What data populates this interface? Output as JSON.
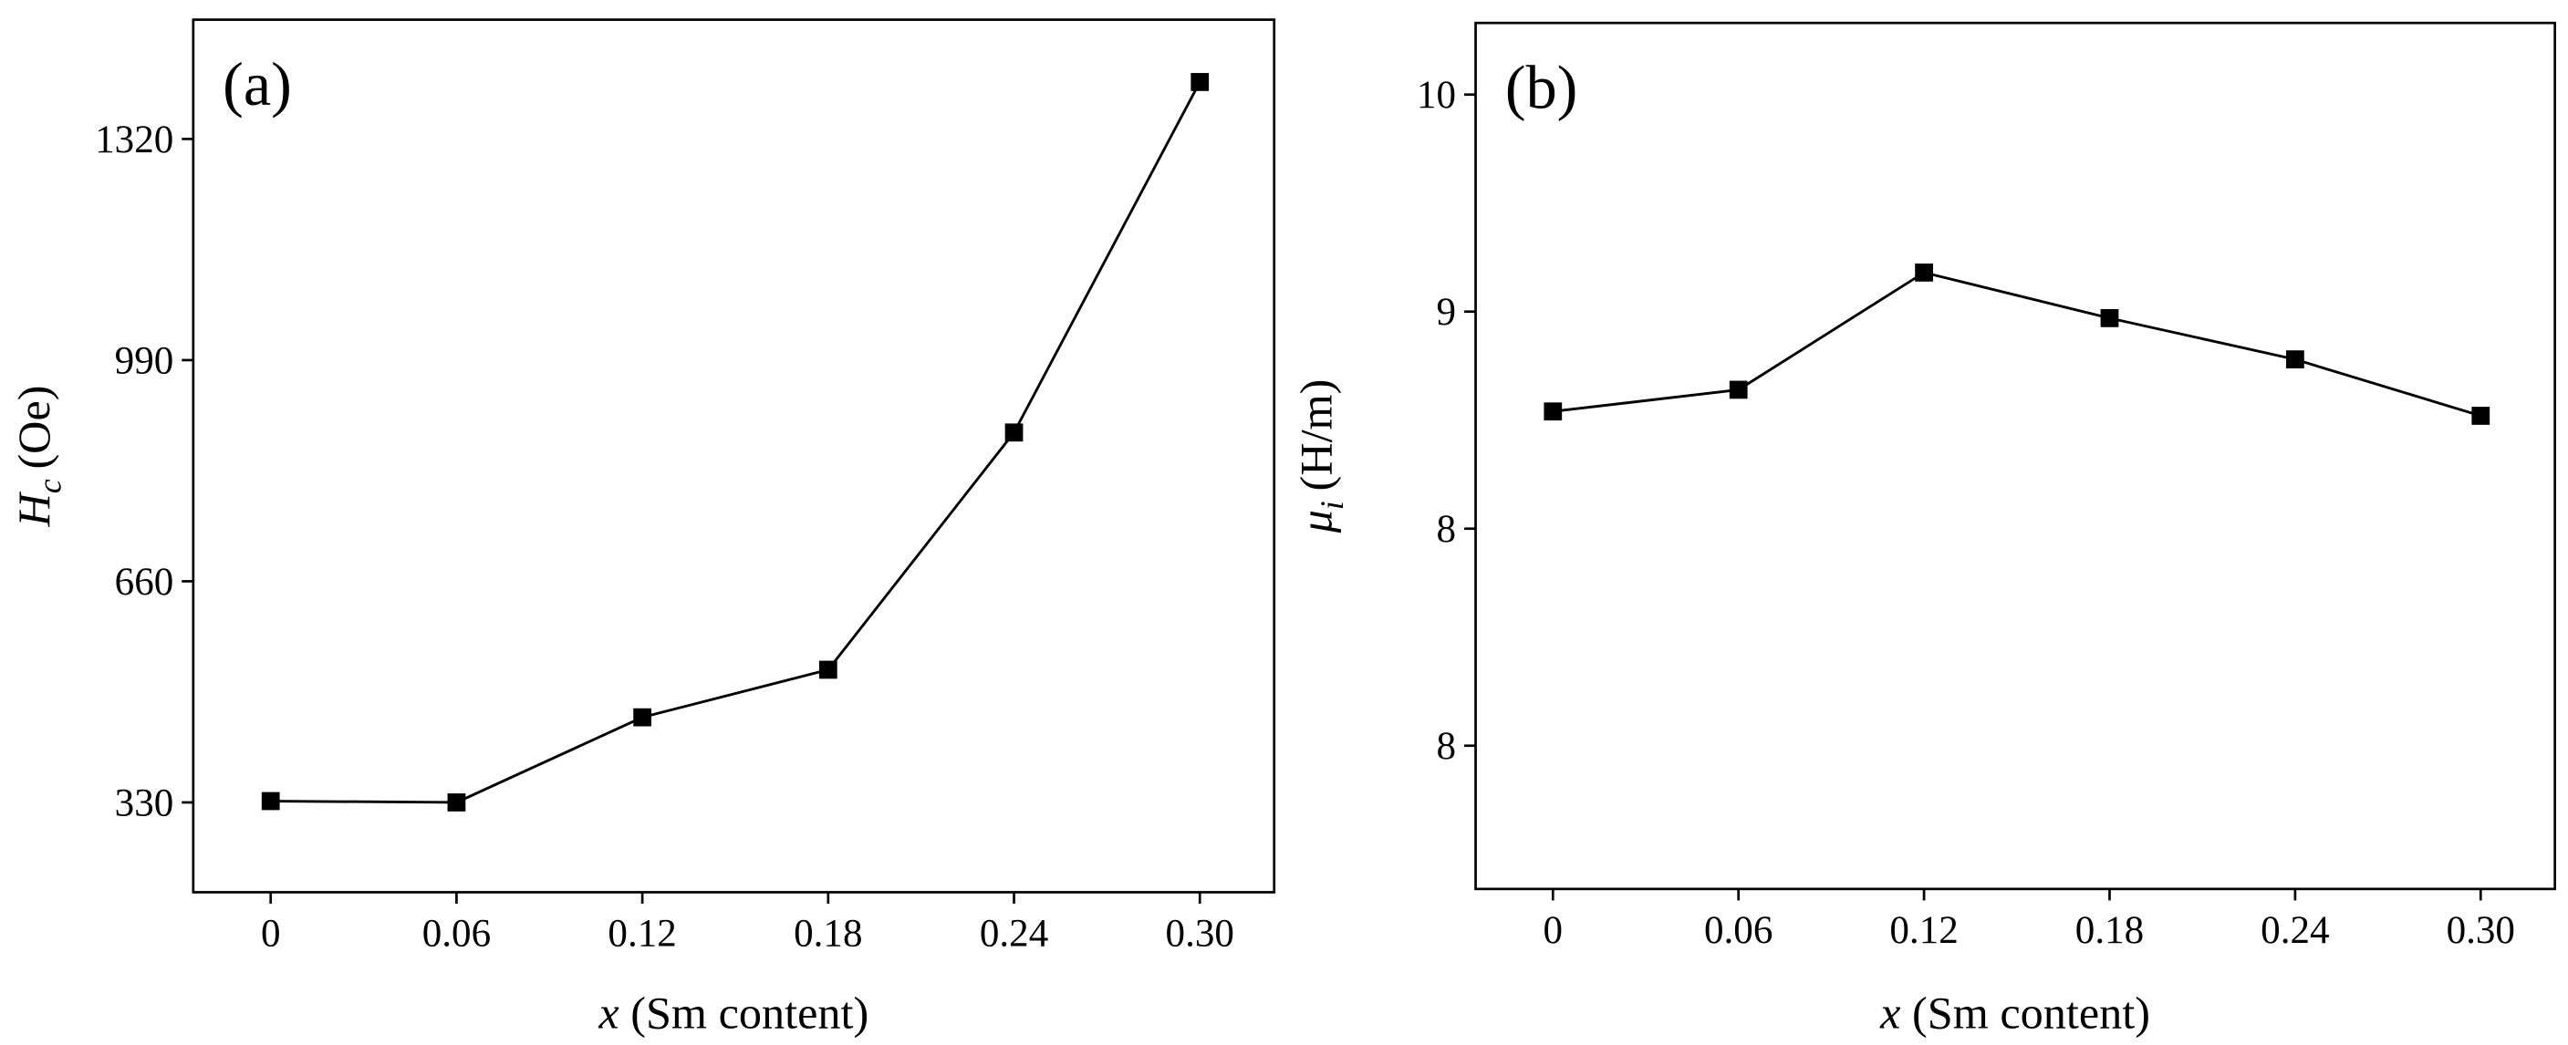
{
  "chart_data": [
    {
      "type": "line",
      "panel_label": "(a)",
      "xlabel": {
        "symbol": "x",
        "text": "(Sm content)"
      },
      "ylabel": {
        "symbol": "H",
        "subscript": "c",
        "unit": "(Oe)"
      },
      "x": [
        0,
        0.06,
        0.12,
        0.18,
        0.24,
        0.3
      ],
      "series": [
        {
          "color": "#000000",
          "values": [
            332,
            330,
            457,
            528,
            882,
            1405
          ]
        }
      ],
      "xlim": [
        -0.025,
        0.324
      ],
      "xticks": [
        0,
        0.06,
        0.12,
        0.18,
        0.24,
        {
          "value": 0.3,
          "label": "0.30"
        }
      ],
      "ylim": [
        196,
        1498
      ],
      "yticks": [
        330,
        660,
        990,
        1320
      ]
    },
    {
      "type": "line",
      "panel_label": "(b)",
      "xlabel": {
        "symbol": "x",
        "text": "(Sm content)"
      },
      "ylabel": {
        "symbol": "μ",
        "subscript": "i",
        "unit": "(H/m)"
      },
      "x": [
        0,
        0.06,
        0.12,
        0.18,
        0.24,
        0.3
      ],
      "series": [
        {
          "color": "#000000",
          "values": [
            8.77,
            8.82,
            9.09,
            8.985,
            8.89,
            8.76
          ]
        }
      ],
      "xlim": [
        -0.025,
        0.324
      ],
      "xticks": [
        0,
        0.06,
        0.12,
        0.18,
        0.24,
        {
          "value": 0.3,
          "label": "0.30"
        }
      ],
      "ylim": [
        7.67,
        9.665
      ],
      "yticks": [
        {
          "value": 8,
          "label": "8"
        },
        {
          "value": 8.5,
          "label": "8"
        },
        {
          "value": 9,
          "label": "9"
        },
        {
          "value": 9.5,
          "label": "10"
        }
      ]
    }
  ]
}
